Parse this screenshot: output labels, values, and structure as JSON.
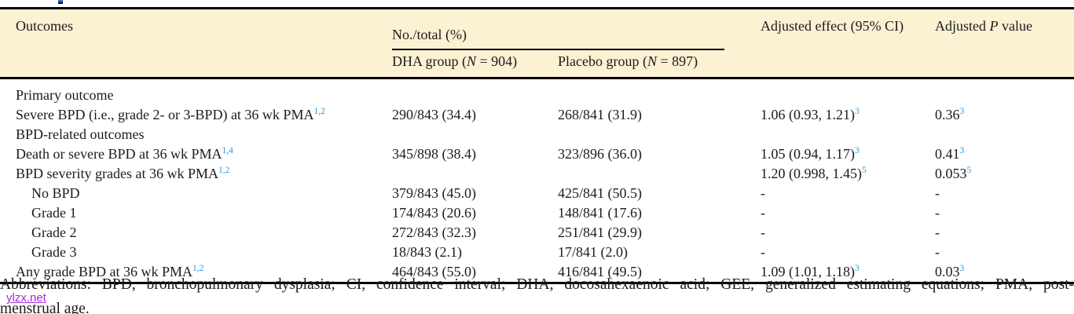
{
  "colors": {
    "header_bg": "#FBF1D3",
    "superscript_blue": "#2B9CD8",
    "watermark_purple": "#A62BD4"
  },
  "watermark": {
    "text": "ylzx.net"
  },
  "table": {
    "header": {
      "outcomes": "Outcomes",
      "no_total": "No./total (%)",
      "dha_group": {
        "pre": "DHA group (",
        "it": "N",
        "post": " = 904)"
      },
      "placebo_group": {
        "pre": "Placebo group (",
        "it": "N",
        "post": " = 897)"
      },
      "adjusted_effect": "Adjusted effect (95% CI)",
      "adjusted_p": {
        "pre": "Adjusted ",
        "it": "P",
        "post": " value"
      }
    },
    "rows": [
      {
        "label": "Primary outcome",
        "label_sup": "",
        "indent": false,
        "dha": "",
        "placebo": "",
        "effect": "",
        "effect_sup": "",
        "p": "",
        "p_sup": ""
      },
      {
        "label": "Severe BPD (i.e., grade 2- or 3-BPD) at 36 wk PMA",
        "label_sup": "1,2",
        "indent": false,
        "dha": "290/843 (34.4)",
        "placebo": "268/841 (31.9)",
        "effect": "1.06 (0.93, 1.21)",
        "effect_sup": "3",
        "p": "0.36",
        "p_sup": "3"
      },
      {
        "label": "BPD-related outcomes",
        "label_sup": "",
        "indent": false,
        "dha": "",
        "placebo": "",
        "effect": "",
        "effect_sup": "",
        "p": "",
        "p_sup": ""
      },
      {
        "label": "Death or severe BPD at 36 wk PMA",
        "label_sup": "1,4",
        "indent": false,
        "dha": "345/898 (38.4)",
        "placebo": "323/896 (36.0)",
        "effect": "1.05 (0.94, 1.17)",
        "effect_sup": "3",
        "p": "0.41",
        "p_sup": "3"
      },
      {
        "label": "BPD severity grades at 36 wk PMA",
        "label_sup": "1,2",
        "indent": false,
        "dha": "",
        "placebo": "",
        "effect": "1.20 (0.998, 1.45)",
        "effect_sup": "5",
        "p": "0.053",
        "p_sup": "5"
      },
      {
        "label": "No BPD",
        "label_sup": "",
        "indent": true,
        "dha": "379/843 (45.0)",
        "placebo": "425/841 (50.5)",
        "effect": "-",
        "effect_sup": "",
        "p": "-",
        "p_sup": ""
      },
      {
        "label": "Grade 1",
        "label_sup": "",
        "indent": true,
        "dha": "174/843 (20.6)",
        "placebo": "148/841 (17.6)",
        "effect": "-",
        "effect_sup": "",
        "p": "-",
        "p_sup": ""
      },
      {
        "label": "Grade 2",
        "label_sup": "",
        "indent": true,
        "dha": "272/843 (32.3)",
        "placebo": "251/841 (29.9)",
        "effect": "-",
        "effect_sup": "",
        "p": "-",
        "p_sup": ""
      },
      {
        "label": "Grade 3",
        "label_sup": "",
        "indent": true,
        "dha": "18/843 (2.1)",
        "placebo": "17/841 (2.0)",
        "effect": "-",
        "effect_sup": "",
        "p": "-",
        "p_sup": ""
      },
      {
        "label": "Any grade BPD at 36 wk PMA",
        "label_sup": "1,2",
        "indent": false,
        "dha": "464/843 (55.0)",
        "placebo": "416/841 (49.5)",
        "effect": "1.09 (1.01, 1.18)",
        "effect_sup": "3",
        "p": "0.03",
        "p_sup": "3"
      }
    ]
  },
  "footnote": {
    "line1": "Abbreviations: BPD, bronchopulmonary dysplasia; CI, confidence interval; DHA, docosahexaenoic acid; GEE, generalized estimating equations; PMA, post-",
    "line2": "menstrual age."
  }
}
